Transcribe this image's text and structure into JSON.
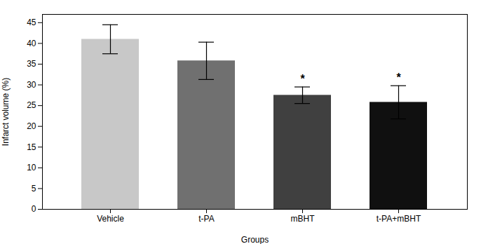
{
  "chart_data": {
    "type": "bar",
    "categories": [
      "Vehicle",
      "t-PA",
      "mBHT",
      "t-PA+mBHT"
    ],
    "values": [
      41.0,
      35.8,
      27.5,
      25.8
    ],
    "errors": [
      3.5,
      4.5,
      2.0,
      4.0
    ],
    "colors": [
      "#c8c8c8",
      "#707070",
      "#404040",
      "#101010"
    ],
    "xlabel": "Groups",
    "ylabel": "Infarct volume (%)",
    "ylim": [
      0,
      47
    ],
    "yticks": [
      0,
      5,
      10,
      15,
      20,
      25,
      30,
      35,
      40,
      45
    ],
    "annotations": [
      {
        "category": "mBHT",
        "text": "*"
      },
      {
        "category": "t-PA+mBHT",
        "text": "*"
      }
    ]
  }
}
